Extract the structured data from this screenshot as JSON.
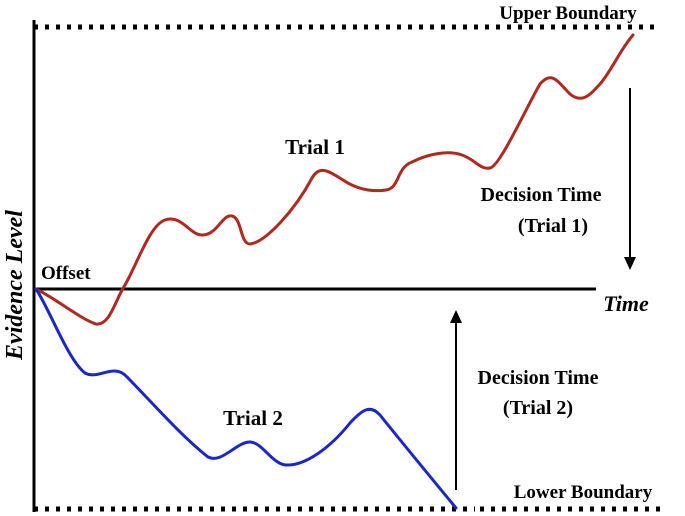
{
  "labels": {
    "upper_boundary": "Upper Boundary",
    "lower_boundary": "Lower Boundary",
    "offset": "Offset",
    "time_axis": "Time",
    "y_axis": "Evidence Level",
    "trial1": "Trial 1",
    "trial2": "Trial 2",
    "decision_time_1_line1": "Decision Time",
    "decision_time_1_line2": "(Trial 1)",
    "decision_time_2_line1": "Decision Time",
    "decision_time_2_line2": "(Trial 2)"
  },
  "colors": {
    "trial1": "#b0291f",
    "trial2": "#1a27c9",
    "axes": "#000000"
  }
}
